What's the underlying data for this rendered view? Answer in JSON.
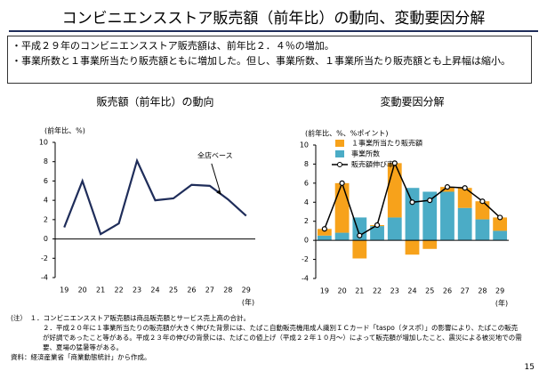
{
  "title": "コンビニエンスストア販売額（前年比）の動向、変動要因分解",
  "bullets": [
    "・平成２９年のコンビニエンスストア販売額は、前年比２．４％の増加。",
    "・事業所数と１事業所当たり販売額ともに増加した。但し、事業所数、１事業所当たり販売額とも上昇幅は縮小。"
  ],
  "chart_data": [
    {
      "type": "line",
      "title": "販売額（前年比）の動向",
      "y_label": "(前年比、%)",
      "x_label": "(年)",
      "categories": [
        "19",
        "20",
        "21",
        "22",
        "23",
        "24",
        "25",
        "26",
        "27",
        "28",
        "29"
      ],
      "values": [
        1.2,
        6.0,
        0.5,
        1.6,
        8.1,
        4.0,
        4.2,
        5.6,
        5.5,
        4.1,
        2.4
      ],
      "color": "#1f2d5a",
      "ylim": [
        -4,
        10
      ],
      "yticks": [
        -4,
        -2,
        0,
        2,
        4,
        6,
        8,
        10
      ],
      "annotation": "全店ベース"
    },
    {
      "type": "bar",
      "stacked": true,
      "title": "変動要因分解",
      "y_label": "(前年比、%、%ポイント)",
      "x_label": "(年)",
      "categories": [
        "19",
        "20",
        "21",
        "22",
        "23",
        "24",
        "25",
        "26",
        "27",
        "28",
        "29"
      ],
      "legend": "upper left",
      "series": [
        {
          "name": "事業所数",
          "color": "#4bacc6",
          "values": [
            0.5,
            0.8,
            2.4,
            1.5,
            2.4,
            5.5,
            5.1,
            5.1,
            3.4,
            2.2,
            1.0
          ]
        },
        {
          "name": "１事業所当たり販売額",
          "color": "#f7a21b",
          "values": [
            0.7,
            5.2,
            -1.9,
            0.1,
            5.7,
            -1.5,
            -0.9,
            0.5,
            2.1,
            1.9,
            1.4
          ]
        },
        {
          "name": "販売額伸び率",
          "type": "line",
          "color": "#000000",
          "values": [
            1.2,
            6.0,
            0.5,
            1.6,
            8.1,
            4.0,
            4.2,
            5.6,
            5.5,
            4.1,
            2.4
          ]
        }
      ],
      "ylim": [
        -4,
        10
      ],
      "yticks": [
        -4,
        -2,
        0,
        2,
        4,
        6,
        8,
        10
      ]
    }
  ],
  "notes": [
    "(注）　１．コンビニエンスストア販売額は商品販売額とサービス売上高の合計。",
    "２．平成２０年に１事業所当たりの販売額が大きく伸びた背景には、たばこ自動販売機用成人識別ＩＣカード「taspo（タスポ）」の影響により、たばこの販売が好調であったこと等がある。平成２３年の伸びの背景には、たばこの値上げ（平成２２年１０月～）によって販売額が増加したこと、震災による被災地での需要、夏場の猛暑等がある。"
  ],
  "source": "資料：経済産業省「商業動態統計」から作成。",
  "page": "15"
}
